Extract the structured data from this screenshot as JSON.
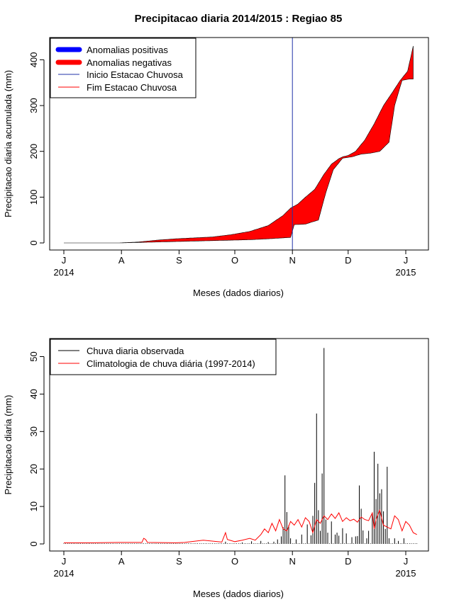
{
  "figure_title": "Precipitacao diaria 2014/2015 : Regiao 85",
  "chart_data": [
    {
      "type": "area",
      "ylabel": "Precipitacao diaria acumulada (mm)",
      "xlabel": "Meses (dados diarios)",
      "ylim": [
        0,
        430
      ],
      "yticks": [
        0,
        100,
        200,
        300,
        400
      ],
      "xlim_days": [
        0,
        190
      ],
      "month_ticks": [
        {
          "day": 0,
          "label": "J"
        },
        {
          "day": 31,
          "label": "A"
        },
        {
          "day": 62,
          "label": "S"
        },
        {
          "day": 92,
          "label": "O"
        },
        {
          "day": 123,
          "label": "N"
        },
        {
          "day": 153,
          "label": "D"
        },
        {
          "day": 184,
          "label": "J"
        }
      ],
      "year_labels": [
        {
          "day": 0,
          "label": "2014"
        },
        {
          "day": 184,
          "label": "2015"
        }
      ],
      "legend": {
        "positive": "Anomalias positivas",
        "negative": "Anomalias negativas",
        "start": "Inicio Estacao Chuvosa",
        "end": "Fim Estacao Chuvosa"
      },
      "rainy_season_start_day": 123,
      "observed_cumulative": [
        [
          0,
          0
        ],
        [
          30,
          0
        ],
        [
          40,
          1
        ],
        [
          50,
          2
        ],
        [
          60,
          3
        ],
        [
          70,
          4
        ],
        [
          80,
          5
        ],
        [
          90,
          6
        ],
        [
          100,
          7
        ],
        [
          110,
          9
        ],
        [
          118,
          11
        ],
        [
          122,
          12
        ],
        [
          124,
          40
        ],
        [
          130,
          41
        ],
        [
          133,
          45
        ],
        [
          137,
          50
        ],
        [
          141,
          110
        ],
        [
          145,
          160
        ],
        [
          148,
          175
        ],
        [
          150,
          185
        ],
        [
          155,
          188
        ],
        [
          160,
          194
        ],
        [
          165,
          196
        ],
        [
          170,
          200
        ],
        [
          175,
          220
        ],
        [
          178,
          300
        ],
        [
          182,
          355
        ],
        [
          186,
          358
        ],
        [
          188,
          358
        ]
      ],
      "climatology_cumulative": [
        [
          0,
          0
        ],
        [
          30,
          0
        ],
        [
          40,
          2
        ],
        [
          50,
          6
        ],
        [
          60,
          9
        ],
        [
          70,
          11
        ],
        [
          80,
          13
        ],
        [
          90,
          18
        ],
        [
          100,
          25
        ],
        [
          110,
          38
        ],
        [
          118,
          60
        ],
        [
          122,
          76
        ],
        [
          126,
          85
        ],
        [
          130,
          100
        ],
        [
          135,
          117
        ],
        [
          140,
          150
        ],
        [
          144,
          172
        ],
        [
          148,
          184
        ],
        [
          150,
          188
        ],
        [
          153,
          191
        ],
        [
          157,
          200
        ],
        [
          162,
          225
        ],
        [
          167,
          260
        ],
        [
          172,
          300
        ],
        [
          177,
          330
        ],
        [
          181,
          355
        ],
        [
          185,
          375
        ],
        [
          188,
          430
        ]
      ]
    },
    {
      "type": "bar",
      "ylabel": "Precipitacao diaria (mm)",
      "xlabel": "Meses (dados diarios)",
      "ylim": [
        0,
        52
      ],
      "yticks": [
        0,
        10,
        20,
        30,
        40,
        50
      ],
      "xlim_days": [
        0,
        190
      ],
      "legend": {
        "observed": "Chuva diaria observada",
        "climatology": "Climatologia de chuva diária (1997-2014)"
      },
      "observed_daily": [
        [
          87,
          0.6
        ],
        [
          96,
          0.4
        ],
        [
          101,
          0.7
        ],
        [
          106,
          0.8
        ],
        [
          110,
          0.5
        ],
        [
          113,
          0.6
        ],
        [
          115,
          1.2
        ],
        [
          117,
          2.0
        ],
        [
          118,
          4.5
        ],
        [
          119,
          18.3
        ],
        [
          120,
          8.5
        ],
        [
          121,
          5.0
        ],
        [
          122,
          1.5
        ],
        [
          125,
          1.2
        ],
        [
          128,
          2.5
        ],
        [
          131,
          5.2
        ],
        [
          133,
          2.3
        ],
        [
          134,
          7.5
        ],
        [
          135,
          16.3
        ],
        [
          136,
          34.8
        ],
        [
          137,
          9.0
        ],
        [
          138,
          3.5
        ],
        [
          139,
          18.8
        ],
        [
          140,
          52.3
        ],
        [
          141,
          6.5
        ],
        [
          142,
          3.0
        ],
        [
          144,
          6.0
        ],
        [
          146,
          2.5
        ],
        [
          147,
          3.0
        ],
        [
          148,
          2.2
        ],
        [
          150,
          4.2
        ],
        [
          152,
          2.8
        ],
        [
          155,
          1.8
        ],
        [
          157,
          2.0
        ],
        [
          158,
          2.1
        ],
        [
          159,
          15.6
        ],
        [
          160,
          9.4
        ],
        [
          161,
          3.6
        ],
        [
          163,
          1.5
        ],
        [
          164,
          3.5
        ],
        [
          166,
          8.0
        ],
        [
          167,
          24.6
        ],
        [
          168,
          12.0
        ],
        [
          169,
          21.4
        ],
        [
          170,
          13.5
        ],
        [
          171,
          14.6
        ],
        [
          172,
          8.7
        ],
        [
          173,
          4.0
        ],
        [
          174,
          20.6
        ],
        [
          175,
          1.5
        ],
        [
          178,
          1.5
        ],
        [
          180,
          0.8
        ],
        [
          183,
          1.5
        ]
      ],
      "climatology_daily": [
        [
          0,
          0.3
        ],
        [
          15,
          0.3
        ],
        [
          30,
          0.4
        ],
        [
          42,
          0.4
        ],
        [
          43,
          1.5
        ],
        [
          44,
          1.2
        ],
        [
          45,
          0.4
        ],
        [
          60,
          0.3
        ],
        [
          65,
          0.4
        ],
        [
          75,
          1.0
        ],
        [
          85,
          0.5
        ],
        [
          87,
          3.0
        ],
        [
          88,
          1.2
        ],
        [
          92,
          0.6
        ],
        [
          96,
          1.0
        ],
        [
          100,
          1.5
        ],
        [
          103,
          1.0
        ],
        [
          106,
          2.5
        ],
        [
          108,
          4.0
        ],
        [
          110,
          3.0
        ],
        [
          112,
          5.5
        ],
        [
          114,
          3.5
        ],
        [
          116,
          6.5
        ],
        [
          118,
          4.0
        ],
        [
          120,
          3.5
        ],
        [
          122,
          6.0
        ],
        [
          124,
          5.0
        ],
        [
          126,
          6.5
        ],
        [
          128,
          4.5
        ],
        [
          130,
          7.0
        ],
        [
          132,
          6.0
        ],
        [
          134,
          3.0
        ],
        [
          136,
          6.5
        ],
        [
          138,
          5.5
        ],
        [
          140,
          7.5
        ],
        [
          142,
          6.5
        ],
        [
          144,
          8.0
        ],
        [
          146,
          6.8
        ],
        [
          148,
          8.3
        ],
        [
          150,
          6.0
        ],
        [
          152,
          7.0
        ],
        [
          154,
          6.2
        ],
        [
          156,
          6.6
        ],
        [
          158,
          5.8
        ],
        [
          160,
          7.2
        ],
        [
          162,
          6.5
        ],
        [
          164,
          6.2
        ],
        [
          166,
          8.3
        ],
        [
          167,
          4.0
        ],
        [
          168,
          6.5
        ],
        [
          170,
          9.0
        ],
        [
          172,
          5.0
        ],
        [
          174,
          4.5
        ],
        [
          176,
          4.0
        ],
        [
          178,
          7.5
        ],
        [
          180,
          6.5
        ],
        [
          182,
          3.5
        ],
        [
          184,
          6.0
        ],
        [
          186,
          5.0
        ],
        [
          188,
          3.0
        ],
        [
          190,
          2.5
        ]
      ]
    }
  ]
}
